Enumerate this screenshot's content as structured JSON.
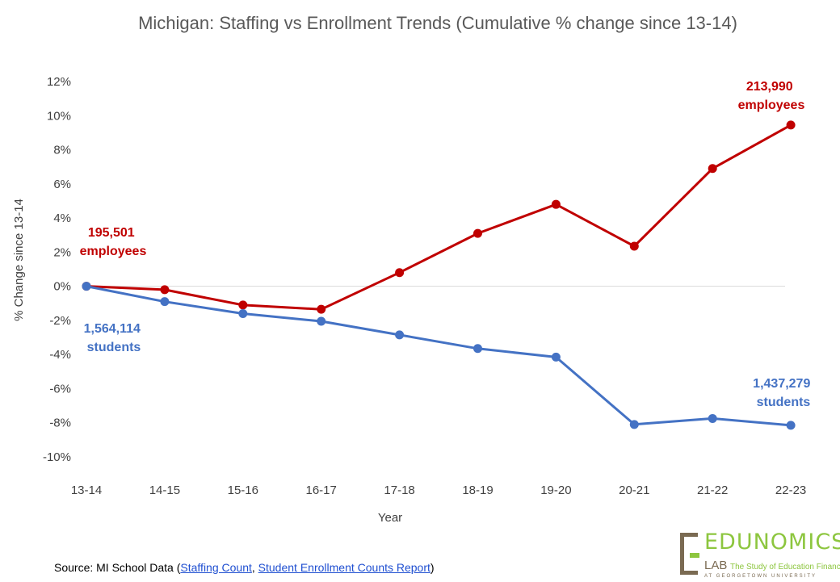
{
  "chart_data": {
    "type": "line",
    "title": "Michigan: Staffing vs Enrollment Trends (Cumulative % change since 13-14)",
    "xlabel": "Year",
    "ylabel": "% Change since 13-14",
    "ylim": [
      -10,
      12
    ],
    "y_ticks": [
      "12%",
      "10%",
      "8%",
      "6%",
      "4%",
      "2%",
      "0%",
      "-2%",
      "-4%",
      "-6%",
      "-8%",
      "-10%"
    ],
    "y_tick_values": [
      12,
      10,
      8,
      6,
      4,
      2,
      0,
      -2,
      -4,
      -6,
      -8,
      -10
    ],
    "categories": [
      "13-14",
      "14-15",
      "15-16",
      "16-17",
      "17-18",
      "18-19",
      "19-20",
      "20-21",
      "21-22",
      "22-23"
    ],
    "series": [
      {
        "color": "#c00000",
        "values": [
          0.0,
          -0.2,
          -1.1,
          -1.35,
          0.8,
          3.1,
          4.8,
          2.35,
          6.9,
          9.45
        ]
      },
      {
        "color": "#4472c4",
        "values": [
          0.0,
          -0.9,
          -1.6,
          -2.05,
          -2.85,
          -3.65,
          -4.15,
          -8.1,
          -7.75,
          -8.15
        ]
      }
    ],
    "annotations": {
      "staff_start": [
        "195,501",
        "employees"
      ],
      "staff_end": [
        "213,990",
        "employees"
      ],
      "students_start": [
        "1,564,114",
        "students"
      ],
      "students_end": [
        "1,437,279",
        "students"
      ]
    },
    "grid": false,
    "zero_line": true
  },
  "source": {
    "prefix": "Source: MI School Data (",
    "link1": "Staffing Count",
    "separator": ", ",
    "link2": "Student Enrollment Counts Report",
    "suffix": ")"
  },
  "logo": {
    "name": "EDUNOMICS",
    "lab": "LAB",
    "tagline": "The Study of Education Finance",
    "subline": "AT GEORGETOWN UNIVERSITY"
  }
}
